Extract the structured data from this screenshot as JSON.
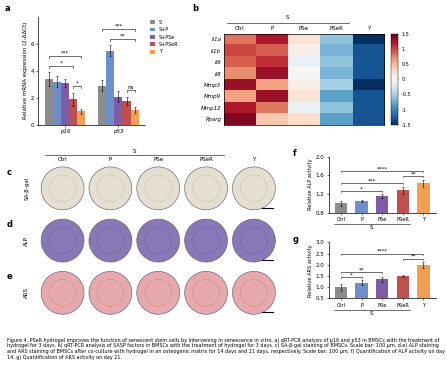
{
  "chart_data": [
    {
      "panel": "a",
      "type": "bar",
      "ylabel": "Relative mRNA expression (2-ΔΔCt)",
      "categories": [
        "p16",
        "p53"
      ],
      "series": [
        {
          "name": "S",
          "color": "#8c8c8c",
          "values": [
            3.4,
            2.9
          ],
          "errors": [
            0.5,
            0.4
          ]
        },
        {
          "name": "S+P",
          "color": "#6e8fc9",
          "values": [
            3.2,
            5.5
          ],
          "errors": [
            0.4,
            0.4
          ]
        },
        {
          "name": "S+PSe",
          "color": "#7b5ea7",
          "values": [
            3.1,
            2.1
          ],
          "errors": [
            0.3,
            0.4
          ]
        },
        {
          "name": "S+PSeR",
          "color": "#c0504d",
          "values": [
            1.9,
            1.8
          ],
          "errors": [
            0.5,
            0.3
          ]
        },
        {
          "name": "Y",
          "color": "#f0a050",
          "values": [
            1.0,
            1.1
          ],
          "errors": [
            0.2,
            0.2
          ]
        }
      ],
      "ylim": [
        0,
        8
      ],
      "yticks": [
        0,
        2,
        4,
        6
      ],
      "legend": "right",
      "significance": [
        {
          "category": "p16",
          "from": "S+PSeR",
          "to": "Y",
          "label": "*"
        },
        {
          "category": "p16",
          "from": "S",
          "to": "S+PSeR",
          "label": "*"
        },
        {
          "category": "p16",
          "from": "S",
          "to": "Y",
          "label": "***"
        },
        {
          "category": "p53",
          "from": "S+PSeR",
          "to": "Y",
          "label": "ns"
        },
        {
          "category": "p53",
          "from": "S+P",
          "to": "Y",
          "label": "**"
        },
        {
          "category": "p53",
          "from": "S",
          "to": "Y",
          "label": "***"
        }
      ]
    },
    {
      "panel": "b",
      "type": "heatmap",
      "categories": [
        "Ctrl",
        "P",
        "PSe",
        "PSeR",
        "Y"
      ],
      "group_label": "S",
      "group": [
        "Ctrl",
        "P",
        "PSe",
        "PSeR"
      ],
      "rows": [
        "Il1a",
        "Il1b",
        "Il6",
        "Il8",
        "Mmp3",
        "Mmp9",
        "Mmp12",
        "Pparg"
      ],
      "cells": [
        [
          0.8,
          1.2,
          0.2,
          -0.6,
          -1.5
        ],
        [
          1.0,
          0.9,
          0.1,
          -0.7,
          -1.3
        ],
        [
          0.9,
          1.1,
          -0.1,
          -0.6,
          -1.3
        ],
        [
          0.7,
          1.3,
          0.0,
          -0.7,
          -1.3
        ],
        [
          1.3,
          0.6,
          0.1,
          -0.5,
          -1.5
        ],
        [
          0.6,
          1.3,
          0.2,
          -0.8,
          -1.3
        ],
        [
          1.2,
          0.8,
          -0.1,
          -0.6,
          -1.3
        ],
        [
          1.4,
          0.4,
          0.3,
          -0.8,
          -1.3
        ]
      ],
      "colorbar": {
        "range": [
          -1.5,
          1.5
        ],
        "ticks": [
          -1.5,
          -1,
          -0.5,
          0,
          0.5,
          1,
          1.5
        ]
      }
    },
    {
      "panel": "f",
      "type": "bar",
      "ylabel": "Relative ALP activity",
      "categories": [
        "Ctrl",
        "P",
        "PSe",
        "PSeR",
        "Y"
      ],
      "group_label": "S",
      "group": [
        "Ctrl",
        "P",
        "PSe",
        "PSeR"
      ],
      "values": [
        1.0,
        1.05,
        1.15,
        1.28,
        1.43
      ],
      "errors": [
        0.05,
        0.02,
        0.04,
        0.08,
        0.08
      ],
      "colors": [
        "#8c8c8c",
        "#6e8fc9",
        "#7b5ea7",
        "#c0504d",
        "#f0a050"
      ],
      "ylim": [
        0.8,
        2.0
      ],
      "yticks": [
        0.8,
        1.2,
        1.6,
        {
          "value": 2,
          "label": "2.0"
        }
      ],
      "significance": [
        {
          "from": "Ctrl",
          "to": "PSe",
          "label": "*"
        },
        {
          "from": "Ctrl",
          "to": "PSeR",
          "label": "***"
        },
        {
          "from": "PSeR",
          "to": "Y",
          "label": "**"
        },
        {
          "from": "Ctrl",
          "to": "Y",
          "label": "****"
        }
      ]
    },
    {
      "panel": "g",
      "type": "bar",
      "ylabel": "Relative ARS activity",
      "categories": [
        "Ctrl",
        "P",
        "PSe",
        "PSeR",
        "Y"
      ],
      "group_label": "S",
      "group": [
        "Ctrl",
        "P",
        "PSe",
        "PSeR"
      ],
      "values": [
        1.0,
        1.2,
        1.35,
        1.5,
        2.0
      ],
      "errors": [
        0.15,
        0.1,
        0.12,
        0.05,
        0.12
      ],
      "colors": [
        "#8c8c8c",
        "#6e8fc9",
        "#7b5ea7",
        "#c0504d",
        "#f0a050"
      ],
      "ylim": [
        0.5,
        3.0
      ],
      "yticks": [
        0.5,
        {
          "value": 1,
          "label": "1.0"
        },
        1.5,
        {
          "value": 2,
          "label": "2.0"
        },
        2.5,
        {
          "value": 3,
          "label": "3.0"
        }
      ],
      "significance": [
        {
          "from": "Ctrl",
          "to": "P",
          "label": "*"
        },
        {
          "from": "Ctrl",
          "to": "PSe",
          "label": "**"
        },
        {
          "from": "PSeR",
          "to": "Y",
          "label": "**"
        },
        {
          "from": "Ctrl",
          "to": "Y",
          "label": "****"
        }
      ]
    }
  ],
  "image_panels": {
    "columns": [
      "Ctrl",
      "P",
      "PSe",
      "PSeR",
      "Y"
    ],
    "group_label": "S",
    "group": [
      "Ctrl",
      "P",
      "PSe",
      "PSeR"
    ],
    "rows": [
      {
        "panel": "c",
        "label": "SA-β-gal"
      },
      {
        "panel": "d",
        "label": "ALP"
      },
      {
        "panel": "e",
        "label": "ARS"
      }
    ]
  },
  "caption": "Figure 4. PSeR hydrogel improves the function of senescent stem cells by intervening in senescence in vitro. a) qRT-PCR analysis of p16 and p53 in BMSCs with the treatment of hydrogel for 3 days. b) qRT-PCR analysis of SASP factors in BMSCs with the treatment of hydrogel for 3 days. c) SA-β-gal staining of BMSCs. Scale bar: 100 µm. d,e) ALP staining and ARS staining of BMSCs after co-culture with hydrogel in an osteogenic matrix for 14 days and 21 days, respectively. Scale bar: 100 µm. f) Quantification of ALP activity on day 14. g) Quantification of ARS activity on day 21."
}
